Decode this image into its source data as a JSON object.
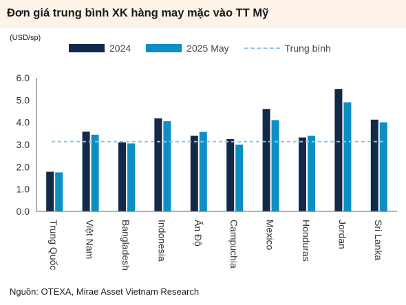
{
  "title": "Đơn giá trung bình XK hàng may mặc vào TT Mỹ",
  "unit_label": "(USD/sp)",
  "source": "Nguồn: OTEXA, Mirae Asset Vietnam Research",
  "colors": {
    "series_2024": "#12294a",
    "series_2025": "#0d8fc4",
    "average": "#8fc3e6",
    "title_bg": "#fdf3e8"
  },
  "chart_data": {
    "type": "bar",
    "categories": [
      "Trung Quốc",
      "Việt Nam",
      "Bangladesh",
      "Indonesia",
      "Ấn Độ",
      "Campuchia",
      "Mexico",
      "Honduras",
      "Jordan",
      "Sri Lanka"
    ],
    "series": [
      {
        "name": "2024",
        "values": [
          1.78,
          3.58,
          3.1,
          4.18,
          3.4,
          3.25,
          4.6,
          3.32,
          5.5,
          4.12
        ]
      },
      {
        "name": "2025 May",
        "values": [
          1.75,
          3.44,
          3.05,
          4.05,
          3.57,
          3.0,
          4.1,
          3.4,
          4.9,
          4.0
        ]
      }
    ],
    "average": {
      "name": "Trung bình",
      "value": 3.13
    },
    "ylim": [
      0,
      6
    ],
    "yticks": [
      "0.0",
      "1.0",
      "2.0",
      "3.0",
      "4.0",
      "5.0",
      "6.0"
    ],
    "legend_position": "top",
    "grid": false
  }
}
